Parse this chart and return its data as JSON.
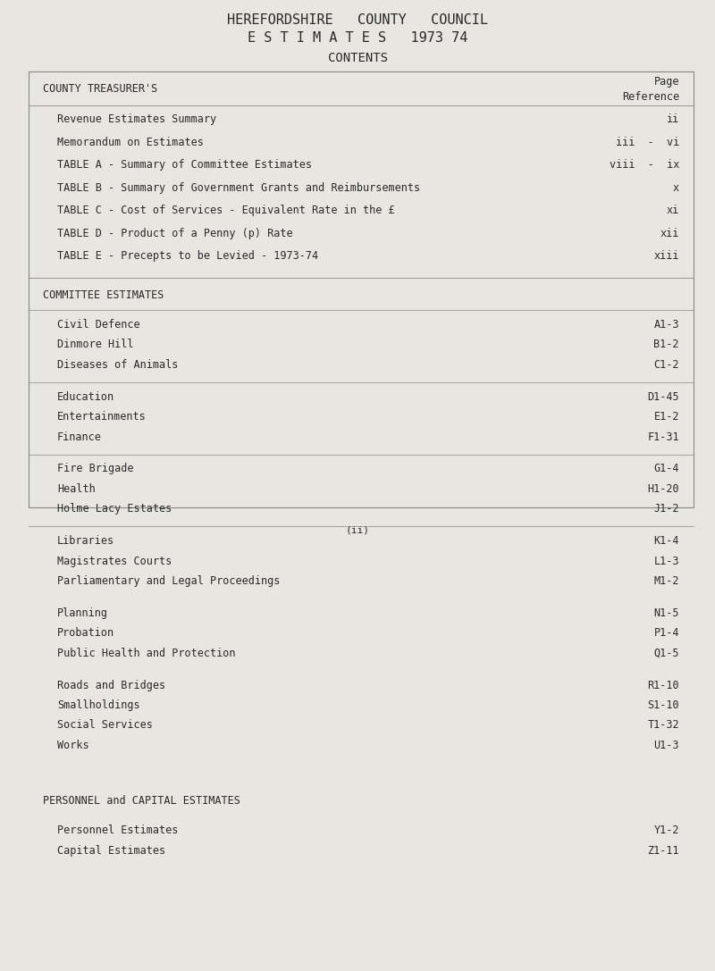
{
  "bg_color": "#e8e6e0",
  "text_color": "#2a2a2a",
  "header_line1": "HEREFORDSHIRE   COUNTY   COUNCIL",
  "header_line2": "E S T I M A T E S   1973 74",
  "header_line3": "CONTENTS",
  "section1_header": "COUNTY TREASURER'S",
  "section1_items": [
    [
      "Revenue Estimates Summary",
      "ii"
    ],
    [
      "Memorandum on Estimates",
      "iii  -  vi"
    ],
    [
      "TABLE A - Summary of Committee Estimates",
      "viii  -  ix"
    ],
    [
      "TABLE B - Summary of Government Grants and Reimbursements",
      "x"
    ],
    [
      "TABLE C - Cost of Services - Equivalent Rate in the £",
      "xi"
    ],
    [
      "TABLE D - Product of a Penny (p) Rate",
      "xii"
    ],
    [
      "TABLE E - Precepts to be Levied - 1973-74",
      "xiii"
    ]
  ],
  "section2_header": "COMMITTEE ESTIMATES",
  "section2_groups": [
    [
      [
        "Civil Defence",
        "A1-3"
      ],
      [
        "Dinmore Hill",
        "B1-2"
      ],
      [
        "Diseases of Animals",
        "C1-2"
      ]
    ],
    [
      [
        "Education",
        "D1-45"
      ],
      [
        "Entertainments",
        "E1-2"
      ],
      [
        "Finance",
        "F1-31"
      ]
    ],
    [
      [
        "Fire Brigade",
        "G1-4"
      ],
      [
        "Health",
        "H1-20"
      ],
      [
        "Holme Lacy Estates",
        "J1-2"
      ]
    ],
    [
      [
        "Libraries",
        "K1-4"
      ],
      [
        "Magistrates Courts",
        "L1-3"
      ],
      [
        "Parliamentary and Legal Proceedings",
        "M1-2"
      ]
    ],
    [
      [
        "Planning",
        "N1-5"
      ],
      [
        "Probation",
        "P1-4"
      ],
      [
        "Public Health and Protection",
        "Q1-5"
      ]
    ],
    [
      [
        "Roads and Bridges",
        "R1-10"
      ],
      [
        "Smallholdings",
        "S1-10"
      ],
      [
        "Social Services",
        "T1-32"
      ],
      [
        "Works",
        "U1-3"
      ]
    ]
  ],
  "section3_header": "PERSONNEL and CAPITAL ESTIMATES",
  "section3_items": [
    [
      "Personnel Estimates",
      "Y1-2"
    ],
    [
      "Capital Estimates",
      "Z1-11"
    ]
  ],
  "footer_text": "(ii)"
}
